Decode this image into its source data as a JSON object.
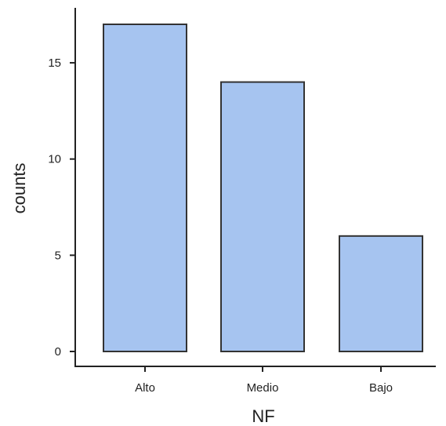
{
  "chart_data": {
    "type": "bar",
    "categories": [
      "Alto",
      "Medio",
      "Bajo"
    ],
    "values": [
      17,
      14,
      6
    ],
    "xlabel": "NF",
    "ylabel": "counts",
    "yticks": [
      0,
      5,
      10,
      15
    ],
    "ylim": [
      0,
      18
    ],
    "grid": false,
    "legend": "none",
    "bar_color": "#a6c4f0",
    "bar_edge_color": "#333333"
  }
}
